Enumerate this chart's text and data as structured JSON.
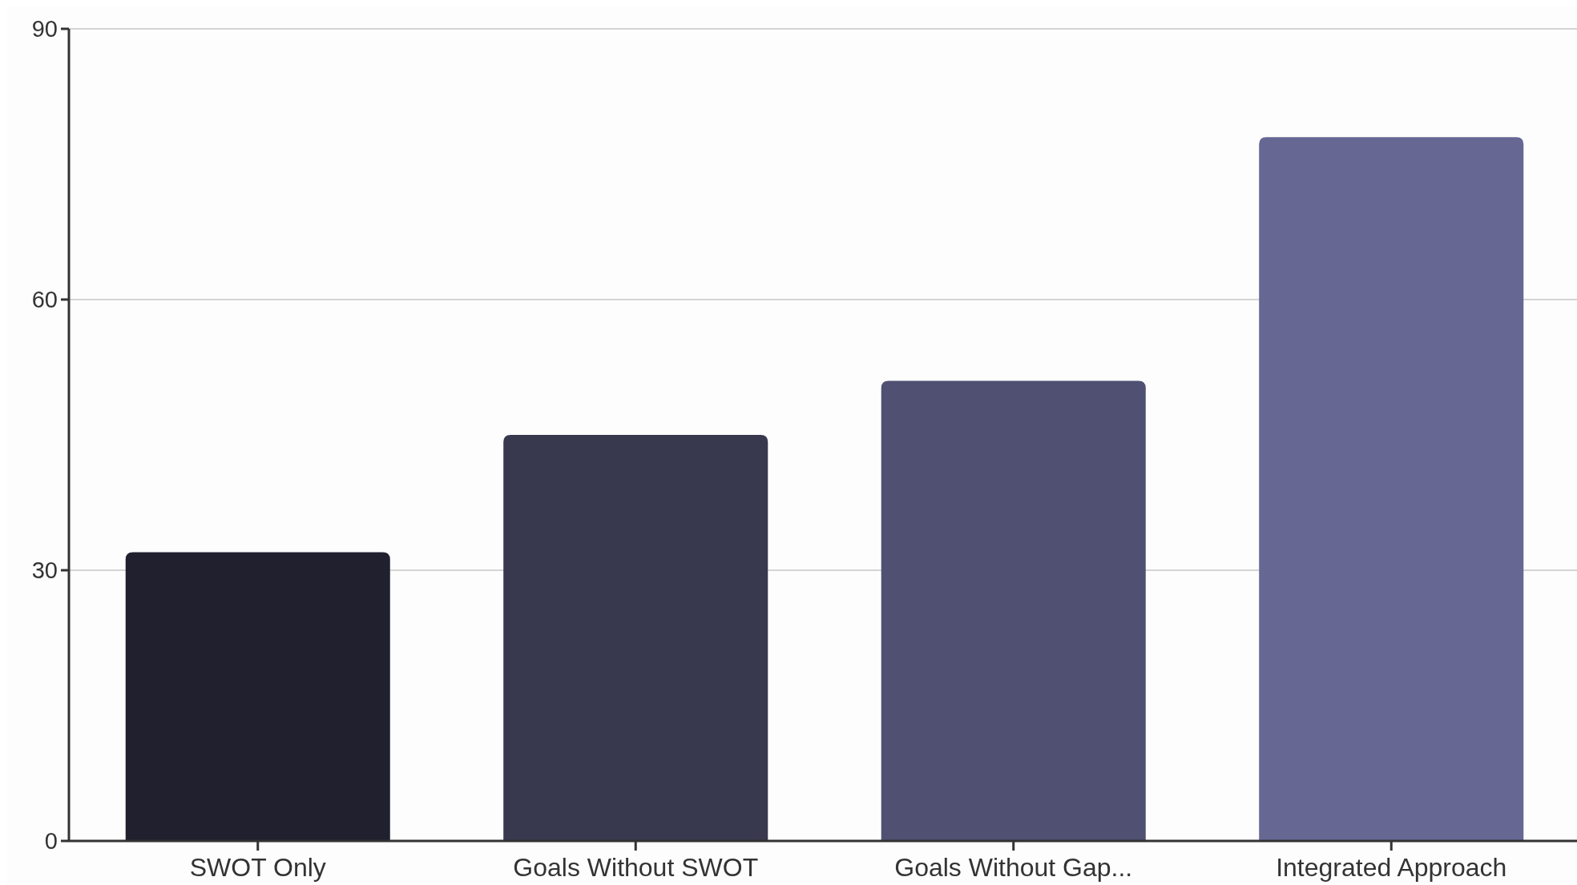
{
  "chart_data": {
    "type": "bar",
    "categories": [
      "SWOT Only",
      "Goals Without SWOT",
      "Goals Without Gap...",
      "Integrated Approach"
    ],
    "values": [
      32,
      45,
      51,
      78
    ],
    "colors": [
      "#20202e",
      "#38384f",
      "#505073",
      "#676794"
    ],
    "ylim": [
      0,
      90
    ],
    "yticks": [
      0,
      30,
      60,
      90
    ],
    "grid": "y"
  }
}
